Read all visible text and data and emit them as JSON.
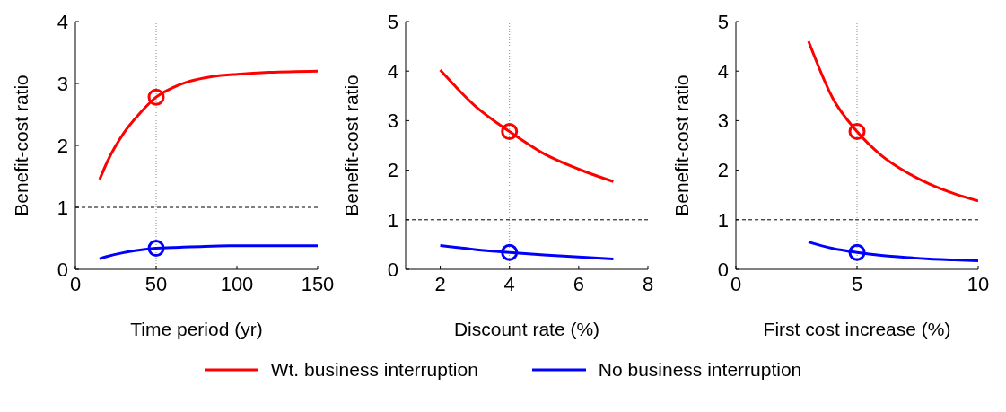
{
  "chart_data": [
    {
      "type": "line",
      "xlabel": "Time period (yr)",
      "ylabel": "Benefit-cost ratio",
      "xlim": [
        0,
        150
      ],
      "xticks": [
        0,
        50,
        100,
        150
      ],
      "ylim": [
        0,
        4
      ],
      "yticks": [
        0,
        1,
        2,
        3,
        4
      ],
      "legend": "bottom",
      "grid": false,
      "marker": "none",
      "ref_lines": [
        {
          "axis": "y",
          "value": 1,
          "line_style": "dashed",
          "color": "#000000"
        },
        {
          "axis": "x",
          "value": 50,
          "line_style": "dotted",
          "color": "#888888"
        }
      ],
      "series": [
        {
          "name": "Wt. business interruption",
          "color": "#ff0000",
          "x": [
            15,
            20,
            30,
            40,
            50,
            60,
            70,
            80,
            90,
            100,
            120,
            150
          ],
          "values": [
            1.45,
            1.75,
            2.2,
            2.52,
            2.78,
            2.93,
            3.03,
            3.09,
            3.13,
            3.15,
            3.18,
            3.2
          ]
        },
        {
          "name": "No business interruption",
          "color": "#0000ff",
          "x": [
            15,
            20,
            30,
            40,
            50,
            60,
            80,
            100,
            150
          ],
          "values": [
            0.17,
            0.21,
            0.27,
            0.31,
            0.34,
            0.35,
            0.37,
            0.38,
            0.38
          ]
        },
        {
          "type": "scatter",
          "marker": "circle",
          "color": "#ff0000",
          "x": [
            50
          ],
          "values": [
            2.78
          ]
        },
        {
          "type": "scatter",
          "marker": "circle",
          "color": "#0000ff",
          "x": [
            50
          ],
          "values": [
            0.34
          ]
        }
      ]
    },
    {
      "type": "line",
      "xlabel": "Discount rate (%)",
      "ylabel": "Benefit-cost ratio",
      "xlim": [
        1,
        8
      ],
      "xticks": [
        2,
        4,
        6,
        8
      ],
      "ylim": [
        0,
        5
      ],
      "yticks": [
        0,
        1,
        2,
        3,
        4,
        5
      ],
      "grid": false,
      "marker": "none",
      "ref_lines": [
        {
          "axis": "y",
          "value": 1,
          "line_style": "dashed",
          "color": "#000000"
        },
        {
          "axis": "x",
          "value": 4,
          "line_style": "dotted",
          "color": "#888888"
        }
      ],
      "series": [
        {
          "color": "#ff0000",
          "x": [
            2,
            3,
            4,
            5,
            6,
            7
          ],
          "values": [
            4.02,
            3.3,
            2.78,
            2.33,
            2.02,
            1.77
          ]
        },
        {
          "color": "#0000ff",
          "x": [
            2,
            3,
            4,
            5,
            6,
            7
          ],
          "values": [
            0.48,
            0.4,
            0.34,
            0.29,
            0.25,
            0.21
          ]
        },
        {
          "type": "scatter",
          "marker": "circle",
          "color": "#ff0000",
          "x": [
            4
          ],
          "values": [
            2.78
          ]
        },
        {
          "type": "scatter",
          "marker": "circle",
          "color": "#0000ff",
          "x": [
            4
          ],
          "values": [
            0.34
          ]
        }
      ]
    },
    {
      "type": "line",
      "xlabel": "First cost increase (%)",
      "ylabel": "Benefit-cost ratio",
      "xlim": [
        0,
        10
      ],
      "xticks": [
        0,
        5,
        10
      ],
      "ylim": [
        0,
        5
      ],
      "yticks": [
        0,
        1,
        2,
        3,
        4,
        5
      ],
      "grid": false,
      "marker": "none",
      "ref_lines": [
        {
          "axis": "y",
          "value": 1,
          "line_style": "dashed",
          "color": "#000000"
        },
        {
          "axis": "x",
          "value": 5,
          "line_style": "dotted",
          "color": "#888888"
        }
      ],
      "series": [
        {
          "color": "#ff0000",
          "x": [
            3,
            4,
            5,
            6,
            7,
            8,
            9,
            10
          ],
          "values": [
            4.6,
            3.45,
            2.78,
            2.3,
            1.97,
            1.72,
            1.53,
            1.38
          ]
        },
        {
          "color": "#0000ff",
          "x": [
            3,
            4,
            5,
            6,
            7,
            8,
            9,
            10
          ],
          "values": [
            0.55,
            0.42,
            0.34,
            0.28,
            0.24,
            0.21,
            0.19,
            0.17
          ]
        },
        {
          "type": "scatter",
          "marker": "circle",
          "color": "#ff0000",
          "x": [
            5
          ],
          "values": [
            2.78
          ]
        },
        {
          "type": "scatter",
          "marker": "circle",
          "color": "#0000ff",
          "x": [
            5
          ],
          "values": [
            0.34
          ]
        }
      ]
    }
  ]
}
